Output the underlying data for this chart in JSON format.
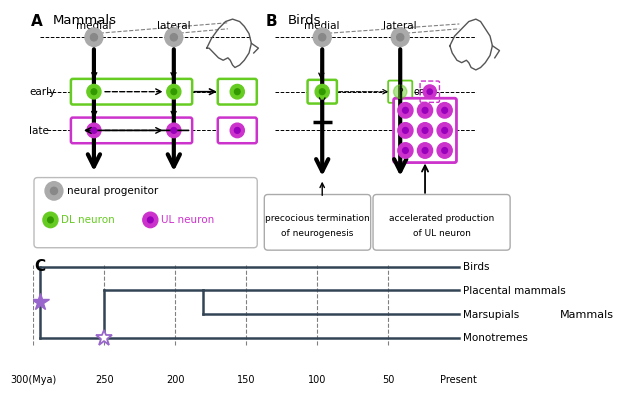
{
  "title_A": "Mammals",
  "title_B": "Birds",
  "label_A": "A",
  "label_B": "B",
  "label_C": "C",
  "green_color": "#66cc22",
  "magenta_color": "#cc33cc",
  "gray_color": "#aaaaaa",
  "gray_dark": "#888888",
  "tree_color": "#334455",
  "star_color": "#9966cc",
  "phylo_mya_ticks": [
    300,
    250,
    200,
    150,
    100,
    50,
    0
  ],
  "phylo_tick_labels": [
    "300(Mya)",
    "250",
    "200",
    "150",
    "100",
    "50",
    "Present"
  ]
}
